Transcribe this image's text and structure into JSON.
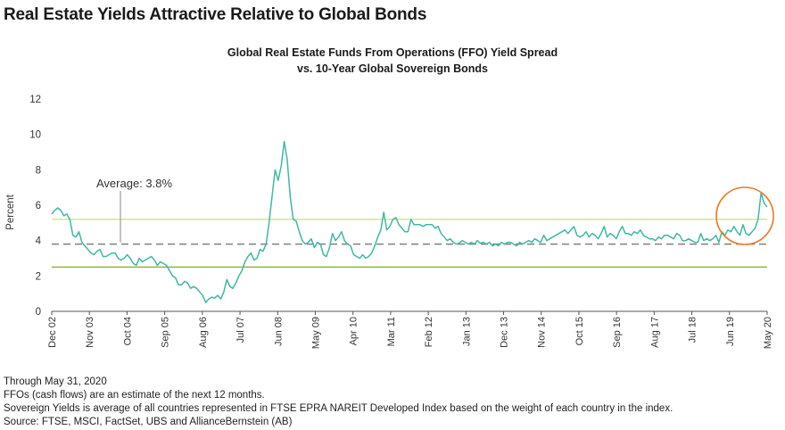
{
  "page_title": "Real Estate Yields Attractive Relative to Global Bonds",
  "chart_title_line1": "Global Real Estate Funds From Operations (FFO) Yield Spread",
  "chart_title_line2": "vs. 10-Year Global Sovereign Bonds",
  "notes": [
    "Through May 31, 2020",
    "FFOs (cash flows) are an estimate of the next 12 months.",
    "Sovereign Yields is average of all countries represented in FTSE EPRA NAREIT Developed Index based on the weight of each country in the index.",
    "Source: FTSE, MSCI, FactSet, UBS and AllianceBernstein (AB)"
  ],
  "colors": {
    "series": "#3fb8a5",
    "average_line": "#808080",
    "upper_band": "#c9df8a",
    "lower_band": "#8db83a",
    "highlight_circle": "#f07820"
  },
  "chart_data": {
    "type": "line",
    "title": "Global Real Estate Funds From Operations (FFO) Yield Spread vs. 10-Year Global Sovereign Bonds",
    "ylabel": "Percent",
    "ylim": [
      0,
      12
    ],
    "yticks": [
      0,
      2,
      4,
      6,
      8,
      10,
      12
    ],
    "xlim": [
      "Dec 02",
      "May 20"
    ],
    "xtick_labels": [
      "Dec 02",
      "Nov 03",
      "Oct 04",
      "Sep 05",
      "Aug 06",
      "Jul 07",
      "Jun 08",
      "May 09",
      "Apr 10",
      "Mar 11",
      "Feb 12",
      "Jan 13",
      "Dec 13",
      "Nov 14",
      "Oct 15",
      "Sep 16",
      "Aug 17",
      "Jul 18",
      "Jun 19",
      "May 20"
    ],
    "average": 3.8,
    "average_label": "Average: 3.8%",
    "upper_band": 5.2,
    "lower_band": 2.5,
    "series": [
      {
        "values": [
          5.5,
          5.7,
          5.85,
          5.7,
          5.4,
          5.5,
          5.2,
          4.3,
          4.2,
          4.5,
          3.9,
          3.7,
          3.5,
          3.3,
          3.2,
          3.4,
          3.5,
          3.1,
          3.1,
          3.2,
          3.3,
          3.3,
          3.0,
          2.9,
          3.0,
          3.2,
          3.0,
          2.7,
          2.6,
          3.0,
          2.8,
          2.9,
          3.0,
          3.1,
          2.9,
          2.6,
          2.8,
          2.7,
          2.6,
          2.3,
          2.0,
          1.9,
          1.5,
          1.5,
          1.7,
          1.6,
          1.3,
          1.4,
          1.3,
          1.1,
          0.9,
          0.5,
          0.7,
          0.8,
          0.75,
          0.9,
          0.7,
          1.1,
          1.8,
          1.4,
          1.3,
          1.6,
          2.0,
          2.3,
          2.8,
          3.1,
          3.3,
          2.9,
          3.0,
          3.5,
          3.4,
          3.8,
          5.0,
          6.5,
          8.0,
          7.4,
          8.2,
          9.6,
          8.6,
          6.5,
          5.2,
          5.1,
          4.5,
          4.0,
          3.8,
          3.9,
          4.1,
          3.6,
          3.9,
          3.8,
          3.2,
          3.1,
          3.6,
          4.4,
          4.0,
          4.2,
          4.5,
          4.0,
          3.8,
          3.7,
          3.2,
          3.1,
          3.0,
          3.2,
          3.0,
          3.1,
          3.3,
          3.7,
          4.2,
          4.6,
          5.6,
          4.6,
          4.8,
          5.2,
          5.3,
          4.9,
          4.7,
          4.5,
          4.5,
          5.2,
          4.9,
          4.9,
          4.9,
          4.8,
          4.9,
          4.9,
          4.9,
          4.7,
          4.8,
          4.4,
          4.2,
          4.0,
          4.1,
          3.9,
          3.8,
          3.85,
          4.0,
          3.9,
          3.8,
          3.9,
          3.8,
          4.0,
          3.85,
          3.9,
          3.8,
          3.9,
          3.7,
          3.8,
          3.7,
          3.9,
          3.8,
          3.9,
          3.9,
          3.8,
          3.7,
          3.9,
          3.8,
          3.9,
          4.0,
          3.9,
          4.1,
          4.0,
          3.9,
          4.3,
          4.0,
          4.1,
          4.2,
          4.3,
          4.4,
          4.5,
          4.6,
          4.4,
          4.6,
          4.8,
          4.3,
          4.2,
          4.3,
          4.5,
          4.2,
          4.4,
          4.3,
          4.1,
          4.4,
          4.8,
          4.2,
          4.4,
          4.3,
          4.1,
          4.5,
          4.8,
          4.4,
          4.4,
          4.3,
          4.5,
          4.4,
          4.6,
          4.3,
          4.2,
          4.1,
          4.1,
          4.0,
          4.2,
          4.1,
          4.3,
          4.3,
          4.2,
          4.1,
          4.4,
          4.3,
          4.0,
          4.0,
          4.1,
          4.0,
          3.9,
          3.9,
          4.4,
          4.0,
          4.1,
          4.0,
          4.1,
          4.3,
          3.9,
          4.5,
          4.3,
          4.6,
          4.5,
          4.8,
          4.5,
          4.3,
          4.9,
          4.4,
          4.3,
          4.5,
          4.7,
          5.2,
          6.7,
          6.1,
          5.9
        ]
      }
    ],
    "annotations": [
      "Average: 3.8%"
    ]
  }
}
